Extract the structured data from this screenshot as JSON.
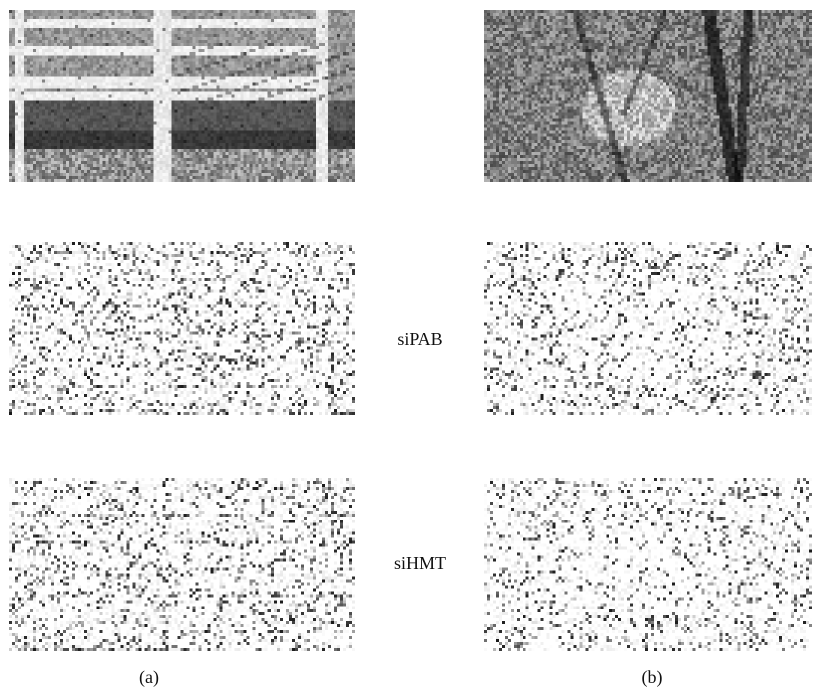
{
  "figure": {
    "row_labels": {
      "sipab": "siPAB",
      "sihmt": "siHMT"
    },
    "column_labels": {
      "a": "(a)",
      "b": "(b)"
    },
    "panels": [
      {
        "id": "a-original",
        "column": "a",
        "content": "grayscale photo of white wooden bridge railing"
      },
      {
        "id": "b-original",
        "column": "b",
        "content": "grayscale photo of dense foliage and tree trunks"
      },
      {
        "id": "a-sipab",
        "column": "a",
        "row": "siPAB",
        "content": "noisy edge-like residual map"
      },
      {
        "id": "b-sipab",
        "column": "b",
        "row": "siPAB",
        "content": "noisy speckle residual map"
      },
      {
        "id": "a-sihmt",
        "column": "a",
        "row": "siHMT",
        "content": "noisy edge-like residual map"
      },
      {
        "id": "b-sihmt",
        "column": "b",
        "row": "siHMT",
        "content": "noisy speckle residual map"
      }
    ]
  }
}
